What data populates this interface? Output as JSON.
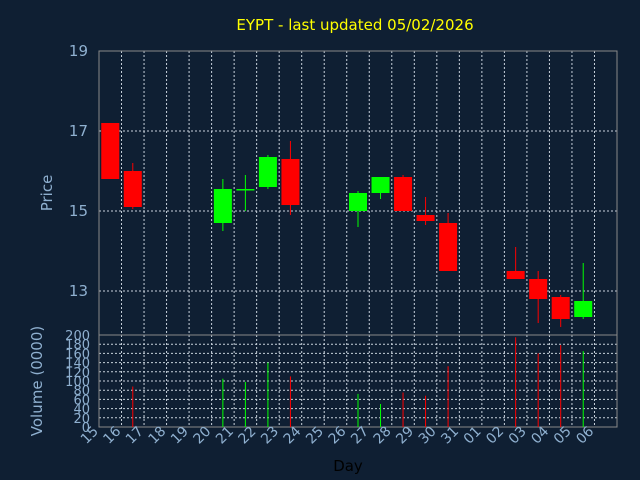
{
  "chart_data": {
    "type": "candlestick",
    "title": "EYPT - last updated 05/02/2026",
    "price_axis": {
      "label": "Price",
      "ylim": [
        11.9,
        19
      ],
      "ticks": [
        13,
        15,
        17,
        19
      ]
    },
    "volume_axis": {
      "label": "Volume (0000)",
      "ylim": [
        0,
        200
      ],
      "ticks": [
        0,
        20,
        40,
        60,
        80,
        100,
        120,
        140,
        160,
        180,
        200
      ]
    },
    "xlabel": "Day",
    "x_ticks": [
      "15",
      "16",
      "17",
      "18",
      "19",
      "20",
      "21",
      "22",
      "23",
      "24",
      "25",
      "26",
      "27",
      "28",
      "29",
      "30",
      "31",
      "01",
      "02",
      "03",
      "04",
      "05",
      "06"
    ],
    "grid": true,
    "colors": {
      "up": "#00ff00",
      "down": "#ff0000",
      "background": "#0f1f33",
      "title": "#ffff00"
    },
    "candles": [
      {
        "day": "15",
        "open": 17.2,
        "high": 17.2,
        "low": 15.8,
        "close": 15.8,
        "volume": 0
      },
      {
        "day": "16",
        "open": 16.0,
        "high": 16.2,
        "low": 15.05,
        "close": 15.1,
        "volume": 88
      },
      {
        "day": "20",
        "open": 14.7,
        "high": 15.8,
        "low": 14.5,
        "close": 15.55,
        "volume": 105
      },
      {
        "day": "21",
        "open": 15.55,
        "high": 15.9,
        "low": 15.0,
        "close": 15.55,
        "volume": 98
      },
      {
        "day": "22",
        "open": 15.6,
        "high": 16.4,
        "low": 15.55,
        "close": 16.35,
        "volume": 140
      },
      {
        "day": "23",
        "open": 16.3,
        "high": 16.75,
        "low": 14.9,
        "close": 15.15,
        "volume": 110
      },
      {
        "day": "26",
        "open": 15.0,
        "high": 15.5,
        "low": 14.6,
        "close": 15.45,
        "volume": 72
      },
      {
        "day": "27",
        "open": 15.45,
        "high": 15.85,
        "low": 15.3,
        "close": 15.85,
        "volume": 50
      },
      {
        "day": "28",
        "open": 15.85,
        "high": 15.9,
        "low": 15.0,
        "close": 15.0,
        "volume": 75
      },
      {
        "day": "29",
        "open": 14.9,
        "high": 15.35,
        "low": 14.65,
        "close": 14.75,
        "volume": 68
      },
      {
        "day": "30",
        "open": 14.7,
        "high": 14.95,
        "low": 13.5,
        "close": 13.5,
        "volume": 132
      },
      {
        "day": "02",
        "open": 13.5,
        "high": 14.1,
        "low": 13.3,
        "close": 13.3,
        "volume": 195
      },
      {
        "day": "03",
        "open": 13.3,
        "high": 13.5,
        "low": 12.2,
        "close": 12.8,
        "volume": 160
      },
      {
        "day": "04",
        "open": 12.85,
        "high": 12.9,
        "low": 12.1,
        "close": 12.3,
        "volume": 178
      },
      {
        "day": "05",
        "open": 12.35,
        "high": 13.7,
        "low": 12.3,
        "close": 12.75,
        "volume": 165
      }
    ]
  }
}
